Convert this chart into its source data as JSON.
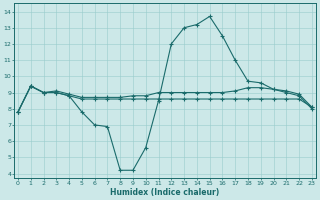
{
  "xlabel": "Humidex (Indice chaleur)",
  "xlim": [
    -0.3,
    23.3
  ],
  "ylim": [
    3.7,
    14.5
  ],
  "xticks": [
    0,
    1,
    2,
    3,
    4,
    5,
    6,
    7,
    8,
    9,
    10,
    11,
    12,
    13,
    14,
    15,
    16,
    17,
    18,
    19,
    20,
    21,
    22,
    23
  ],
  "yticks": [
    4,
    5,
    6,
    7,
    8,
    9,
    10,
    11,
    12,
    13,
    14
  ],
  "bg_color": "#cce8e8",
  "grid_color": "#99cccc",
  "line_color": "#1a6b6b",
  "lines": [
    [
      7.8,
      9.4,
      9.0,
      9.0,
      8.8,
      7.8,
      7.0,
      6.9,
      4.2,
      4.2,
      5.6,
      8.5,
      12.0,
      13.0,
      13.2,
      13.7,
      12.5,
      11.0,
      9.7,
      9.6,
      9.2,
      9.0,
      8.8,
      8.0
    ],
    [
      7.8,
      9.4,
      9.0,
      9.1,
      8.9,
      8.7,
      8.7,
      8.7,
      8.7,
      8.8,
      8.8,
      9.0,
      9.0,
      9.0,
      9.0,
      9.0,
      9.0,
      9.1,
      9.3,
      9.3,
      9.2,
      9.1,
      8.9,
      8.1
    ],
    [
      7.8,
      9.4,
      9.0,
      9.0,
      8.8,
      8.6,
      8.6,
      8.6,
      8.6,
      8.6,
      8.6,
      8.6,
      8.6,
      8.6,
      8.6,
      8.6,
      8.6,
      8.6,
      8.6,
      8.6,
      8.6,
      8.6,
      8.6,
      8.1
    ]
  ]
}
